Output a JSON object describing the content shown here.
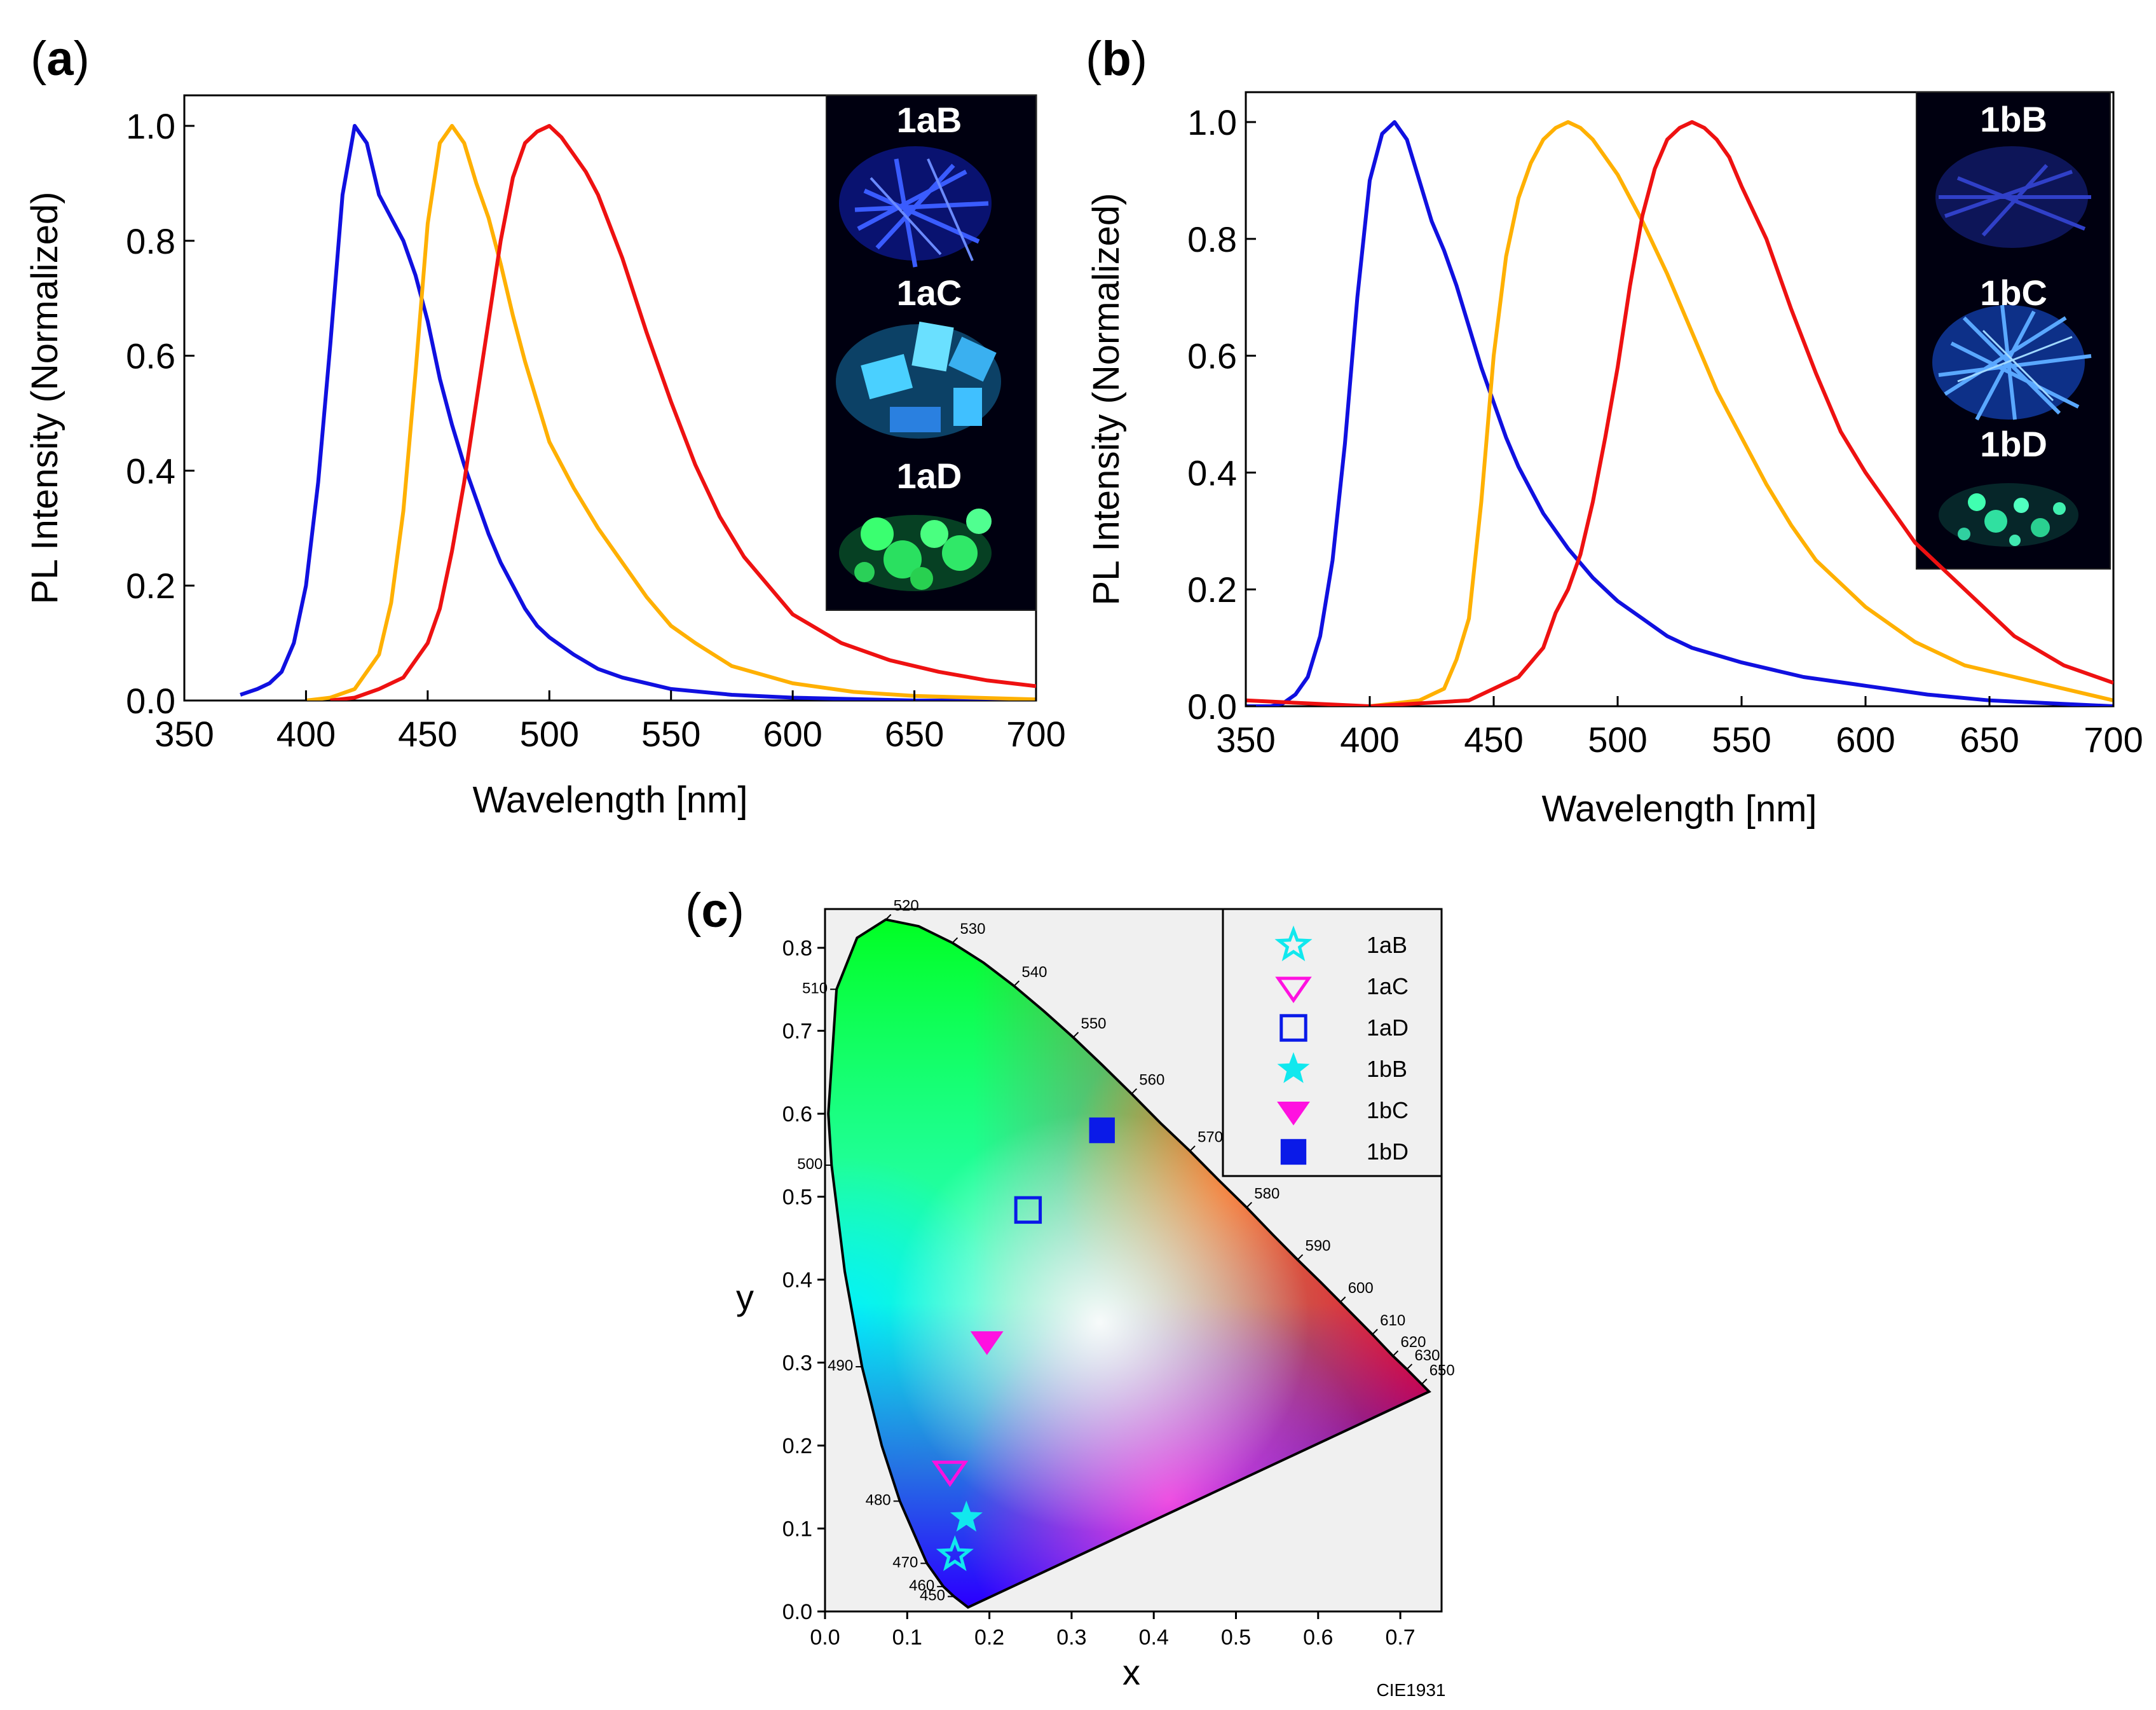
{
  "panels": {
    "a": {
      "label_open": "(",
      "label_letter": "a",
      "label_close": ")"
    },
    "b": {
      "label_open": "(",
      "label_letter": "b",
      "label_close": ")"
    },
    "c": {
      "label_open": "(",
      "label_letter": "c",
      "label_close": ")"
    }
  },
  "colors": {
    "blue": "#1010e0",
    "orange": "#ffb000",
    "red": "#ee1111",
    "cyan": "#11e8ee",
    "magenta": "#ff11e0",
    "navy": "#0a1ae8"
  },
  "chart_data": [
    {
      "id": "a",
      "type": "line",
      "xlabel": "Wavelength [nm]",
      "ylabel": "PL Intensity (Normalized)",
      "xlim": [
        350,
        700
      ],
      "ylim": [
        0,
        1.05
      ],
      "xticks": [
        "350",
        "400",
        "450",
        "500",
        "550",
        "600",
        "650",
        "700"
      ],
      "yticks": [
        "0.0",
        "0.2",
        "0.4",
        "0.6",
        "0.8",
        "1.0"
      ],
      "grid": false,
      "series": [
        {
          "color": "blue",
          "x": [
            373,
            380,
            385,
            390,
            395,
            400,
            405,
            410,
            415,
            420,
            425,
            430,
            435,
            440,
            445,
            450,
            455,
            460,
            465,
            470,
            475,
            480,
            485,
            490,
            495,
            500,
            510,
            520,
            530,
            550,
            575,
            600,
            650,
            700
          ],
          "y": [
            0.01,
            0.02,
            0.03,
            0.05,
            0.1,
            0.2,
            0.38,
            0.62,
            0.88,
            1.0,
            0.97,
            0.88,
            0.84,
            0.8,
            0.74,
            0.66,
            0.56,
            0.48,
            0.41,
            0.35,
            0.29,
            0.24,
            0.2,
            0.16,
            0.13,
            0.11,
            0.08,
            0.055,
            0.04,
            0.02,
            0.01,
            0.005,
            0.0,
            0.0
          ]
        },
        {
          "color": "orange",
          "x": [
            400,
            410,
            420,
            430,
            435,
            440,
            445,
            450,
            455,
            460,
            465,
            470,
            475,
            480,
            485,
            490,
            495,
            500,
            510,
            520,
            530,
            540,
            550,
            560,
            575,
            600,
            625,
            650,
            700
          ],
          "y": [
            0.0,
            0.005,
            0.02,
            0.08,
            0.17,
            0.33,
            0.57,
            0.83,
            0.97,
            1.0,
            0.97,
            0.9,
            0.84,
            0.76,
            0.67,
            0.59,
            0.52,
            0.45,
            0.37,
            0.3,
            0.24,
            0.18,
            0.13,
            0.1,
            0.06,
            0.03,
            0.015,
            0.008,
            0.002
          ]
        },
        {
          "color": "red",
          "x": [
            410,
            420,
            430,
            440,
            450,
            455,
            460,
            465,
            470,
            475,
            480,
            485,
            490,
            495,
            500,
            505,
            510,
            515,
            520,
            530,
            540,
            550,
            560,
            570,
            580,
            600,
            620,
            640,
            660,
            680,
            700
          ],
          "y": [
            0.0,
            0.005,
            0.02,
            0.04,
            0.1,
            0.16,
            0.26,
            0.38,
            0.52,
            0.66,
            0.8,
            0.91,
            0.97,
            0.99,
            1.0,
            0.98,
            0.95,
            0.92,
            0.88,
            0.77,
            0.64,
            0.52,
            0.41,
            0.32,
            0.25,
            0.15,
            0.1,
            0.07,
            0.05,
            0.035,
            0.025
          ]
        }
      ],
      "inset": {
        "labels": [
          "1aB",
          "1aC",
          "1aD"
        ]
      }
    },
    {
      "id": "b",
      "type": "line",
      "xlabel": "Wavelength [nm]",
      "ylabel": "PL Intensity (Normalized)",
      "xlim": [
        350,
        700
      ],
      "ylim": [
        0,
        1.05
      ],
      "xticks": [
        "350",
        "400",
        "450",
        "500",
        "550",
        "600",
        "650",
        "700"
      ],
      "yticks": [
        "0.0",
        "0.2",
        "0.4",
        "0.6",
        "0.8",
        "1.0"
      ],
      "grid": false,
      "series": [
        {
          "color": "blue",
          "x": [
            350,
            360,
            365,
            370,
            375,
            380,
            385,
            390,
            395,
            400,
            405,
            410,
            415,
            420,
            425,
            430,
            435,
            440,
            445,
            450,
            455,
            460,
            470,
            480,
            490,
            500,
            510,
            520,
            530,
            550,
            575,
            600,
            625,
            650,
            700
          ],
          "y": [
            0.0,
            0.0,
            0.005,
            0.02,
            0.05,
            0.12,
            0.25,
            0.45,
            0.7,
            0.9,
            0.98,
            1.0,
            0.97,
            0.9,
            0.83,
            0.78,
            0.72,
            0.65,
            0.58,
            0.52,
            0.46,
            0.41,
            0.33,
            0.27,
            0.22,
            0.18,
            0.15,
            0.12,
            0.1,
            0.075,
            0.05,
            0.035,
            0.02,
            0.01,
            0.0
          ]
        },
        {
          "color": "orange",
          "x": [
            400,
            420,
            430,
            435,
            440,
            445,
            450,
            455,
            460,
            465,
            470,
            475,
            480,
            485,
            490,
            495,
            500,
            510,
            520,
            530,
            540,
            550,
            560,
            570,
            580,
            600,
            620,
            640,
            660,
            680,
            700
          ],
          "y": [
            0.0,
            0.01,
            0.03,
            0.08,
            0.15,
            0.35,
            0.6,
            0.77,
            0.87,
            0.93,
            0.97,
            0.99,
            1.0,
            0.99,
            0.97,
            0.94,
            0.91,
            0.83,
            0.74,
            0.64,
            0.54,
            0.46,
            0.38,
            0.31,
            0.25,
            0.17,
            0.11,
            0.07,
            0.05,
            0.03,
            0.01
          ]
        },
        {
          "color": "red",
          "x": [
            350,
            400,
            440,
            460,
            470,
            475,
            480,
            485,
            490,
            495,
            500,
            505,
            510,
            515,
            520,
            525,
            530,
            535,
            540,
            545,
            550,
            560,
            570,
            580,
            590,
            600,
            620,
            640,
            660,
            680,
            700
          ],
          "y": [
            0.01,
            0.0,
            0.01,
            0.05,
            0.1,
            0.16,
            0.2,
            0.26,
            0.35,
            0.46,
            0.58,
            0.72,
            0.84,
            0.92,
            0.97,
            0.99,
            1.0,
            0.99,
            0.97,
            0.94,
            0.89,
            0.8,
            0.68,
            0.57,
            0.47,
            0.4,
            0.28,
            0.2,
            0.12,
            0.07,
            0.04
          ]
        }
      ],
      "inset": {
        "labels": [
          "1bB",
          "1bC",
          "1bD"
        ]
      }
    },
    {
      "id": "c",
      "type": "scatter",
      "xlabel": "x",
      "ylabel": "y",
      "xlim": [
        0.0,
        0.75
      ],
      "ylim": [
        0.0,
        0.85
      ],
      "xticks": [
        "0.0",
        "0.1",
        "0.2",
        "0.3",
        "0.4",
        "0.5",
        "0.6",
        "0.7"
      ],
      "yticks": [
        "0.0",
        "0.1",
        "0.2",
        "0.3",
        "0.4",
        "0.5",
        "0.6",
        "0.7",
        "0.8"
      ],
      "footer": "CIE1931",
      "legend_position": "top-right",
      "locus_labels": [
        {
          "text": "450",
          "x": 0.157,
          "y": 0.018
        },
        {
          "text": "460",
          "x": 0.144,
          "y": 0.03
        },
        {
          "text": "470",
          "x": 0.124,
          "y": 0.058
        },
        {
          "text": "480",
          "x": 0.091,
          "y": 0.133
        },
        {
          "text": "490",
          "x": 0.045,
          "y": 0.295
        },
        {
          "text": "500",
          "x": 0.008,
          "y": 0.538
        },
        {
          "text": "510",
          "x": 0.014,
          "y": 0.75
        },
        {
          "text": "520",
          "x": 0.074,
          "y": 0.834
        },
        {
          "text": "530",
          "x": 0.155,
          "y": 0.806
        },
        {
          "text": "540",
          "x": 0.23,
          "y": 0.754
        },
        {
          "text": "550",
          "x": 0.302,
          "y": 0.692
        },
        {
          "text": "560",
          "x": 0.373,
          "y": 0.624
        },
        {
          "text": "570",
          "x": 0.444,
          "y": 0.555
        },
        {
          "text": "580",
          "x": 0.513,
          "y": 0.487
        },
        {
          "text": "590",
          "x": 0.575,
          "y": 0.424
        },
        {
          "text": "600",
          "x": 0.627,
          "y": 0.373
        },
        {
          "text": "610",
          "x": 0.666,
          "y": 0.334
        },
        {
          "text": "620",
          "x": 0.691,
          "y": 0.308
        },
        {
          "text": "630",
          "x": 0.708,
          "y": 0.292
        },
        {
          "text": "650",
          "x": 0.726,
          "y": 0.274
        }
      ],
      "series": [
        {
          "name": "1aB",
          "marker": "star-open",
          "color": "cyan",
          "x": 0.158,
          "y": 0.068
        },
        {
          "name": "1aC",
          "marker": "triangle-open",
          "color": "magenta",
          "x": 0.152,
          "y": 0.17
        },
        {
          "name": "1aD",
          "marker": "square-open",
          "color": "navy",
          "x": 0.247,
          "y": 0.484
        },
        {
          "name": "1bB",
          "marker": "star-filled",
          "color": "cyan",
          "x": 0.172,
          "y": 0.113
        },
        {
          "name": "1bC",
          "marker": "triangle-filled",
          "color": "magenta",
          "x": 0.197,
          "y": 0.327
        },
        {
          "name": "1bD",
          "marker": "square-filled",
          "color": "navy",
          "x": 0.337,
          "y": 0.58
        }
      ]
    }
  ]
}
